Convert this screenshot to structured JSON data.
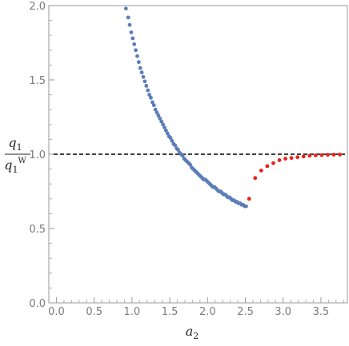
{
  "chart_data": {
    "type": "scatter",
    "xlabel": "a",
    "xlabel_sub": "2",
    "ylabel_num": "q",
    "ylabel_num_sub": "1",
    "ylabel_den": "q",
    "ylabel_den_sub": "1",
    "ylabel_den_sup": "W",
    "xlim": [
      -0.1,
      3.85
    ],
    "ylim": [
      0.0,
      2.0
    ],
    "x_ticks": [
      0.0,
      0.5,
      1.0,
      1.5,
      2.0,
      2.5,
      3.0,
      3.5
    ],
    "x_tick_labels": [
      "0.0",
      "0.5",
      "1.0",
      "1.5",
      "2.0",
      "2.5",
      "3.0",
      "3.5"
    ],
    "y_ticks": [
      0.0,
      0.5,
      1.0,
      1.5,
      2.0
    ],
    "y_tick_labels": [
      "0.0",
      "0.5",
      "1.0",
      "1.5",
      "2.0"
    ],
    "grid": false,
    "reference_line": {
      "y": 1.0,
      "style": "dashed",
      "color": "#000000"
    },
    "series": [
      {
        "color": "#5b7db8",
        "x": [
          0.92,
          0.95,
          0.97,
          0.99,
          1.01,
          1.03,
          1.05,
          1.07,
          1.09,
          1.11,
          1.13,
          1.15,
          1.17,
          1.19,
          1.21,
          1.23,
          1.25,
          1.27,
          1.29,
          1.31,
          1.33,
          1.35,
          1.37,
          1.39,
          1.41,
          1.43,
          1.45,
          1.47,
          1.49,
          1.51,
          1.53,
          1.55,
          1.57,
          1.59,
          1.61,
          1.63,
          1.65,
          1.67,
          1.69,
          1.71,
          1.73,
          1.75,
          1.77,
          1.79,
          1.81,
          1.83,
          1.85,
          1.87,
          1.89,
          1.91,
          1.93,
          1.95,
          1.97,
          1.99,
          2.01,
          2.03,
          2.05,
          2.07,
          2.09,
          2.11,
          2.13,
          2.15,
          2.17,
          2.19,
          2.21,
          2.23,
          2.25,
          2.27,
          2.29,
          2.31,
          2.33,
          2.35,
          2.37,
          2.39,
          2.41,
          2.43,
          2.45,
          2.47,
          2.49,
          2.51
        ],
        "y": [
          1.98,
          1.92,
          1.87,
          1.82,
          1.78,
          1.74,
          1.7,
          1.66,
          1.62,
          1.58,
          1.55,
          1.52,
          1.49,
          1.46,
          1.43,
          1.4,
          1.38,
          1.35,
          1.33,
          1.3,
          1.28,
          1.26,
          1.24,
          1.22,
          1.2,
          1.18,
          1.16,
          1.14,
          1.12,
          1.11,
          1.09,
          1.07,
          1.06,
          1.04,
          1.03,
          1.01,
          1.0,
          0.99,
          0.97,
          0.96,
          0.95,
          0.94,
          0.93,
          0.91,
          0.9,
          0.89,
          0.88,
          0.87,
          0.86,
          0.85,
          0.84,
          0.83,
          0.83,
          0.82,
          0.81,
          0.8,
          0.79,
          0.78,
          0.78,
          0.77,
          0.76,
          0.75,
          0.75,
          0.74,
          0.73,
          0.73,
          0.72,
          0.71,
          0.71,
          0.7,
          0.69,
          0.69,
          0.68,
          0.68,
          0.67,
          0.67,
          0.66,
          0.66,
          0.65,
          0.65
        ]
      },
      {
        "color": "#e8231a",
        "x": [
          2.55,
          2.63,
          2.71,
          2.79,
          2.87,
          2.95,
          3.03,
          3.11,
          3.19,
          3.27,
          3.35,
          3.43,
          3.51,
          3.59,
          3.67,
          3.75
        ],
        "y": [
          0.7,
          0.84,
          0.89,
          0.92,
          0.94,
          0.96,
          0.97,
          0.975,
          0.98,
          0.985,
          0.99,
          0.992,
          0.994,
          0.996,
          0.997,
          0.998
        ]
      }
    ]
  }
}
